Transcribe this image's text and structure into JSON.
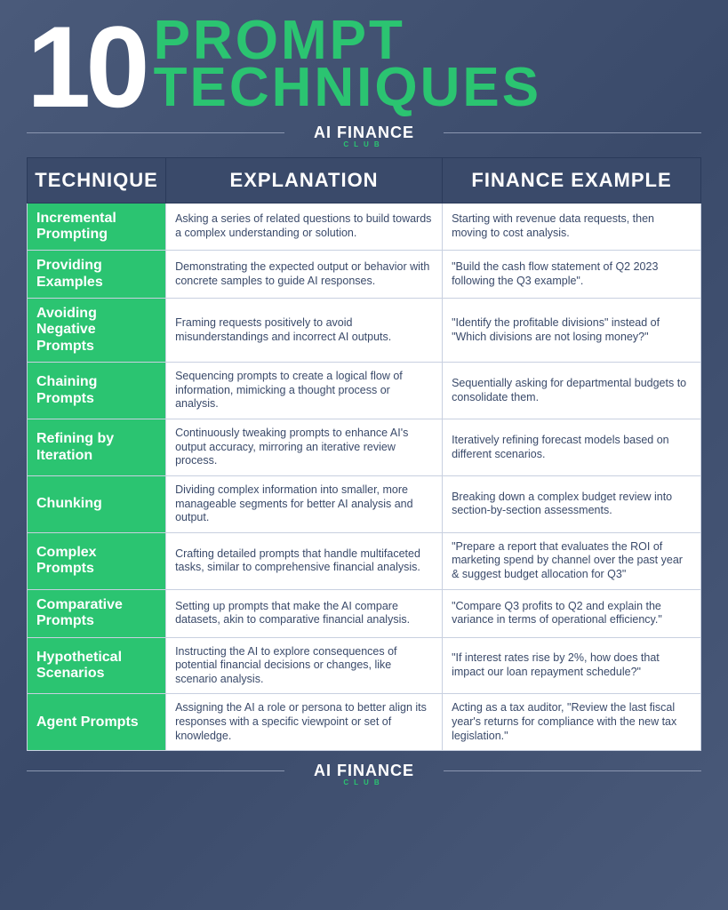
{
  "header": {
    "number": "10",
    "title_line1": "PROMPT",
    "title_line2": "TECHNIQUES"
  },
  "brand": {
    "name": "AI FINANCE",
    "sub": "CLUB"
  },
  "table": {
    "columns": [
      "TECHNIQUE",
      "EXPLANATION",
      "FINANCE EXAMPLE"
    ],
    "rows": [
      {
        "technique": "Incremental Prompting",
        "explanation": "Asking a series of related questions to build towards a complex understanding or solution.",
        "example": "Starting with revenue data requests, then moving to cost analysis."
      },
      {
        "technique": "Providing Examples",
        "explanation": "Demonstrating the expected output or behavior with concrete samples to guide AI responses.",
        "example": "\"Build the cash flow statement of Q2 2023 following the Q3 example\"."
      },
      {
        "technique": "Avoiding Negative Prompts",
        "explanation": "Framing requests positively to avoid misunderstandings and incorrect AI outputs.",
        "example": "\"Identify the profitable divisions\" instead of \"Which divisions are not losing money?\""
      },
      {
        "technique": "Chaining Prompts",
        "explanation": "Sequencing prompts to create a logical flow of information, mimicking a thought process or analysis.",
        "example": "Sequentially asking for departmental budgets to consolidate them."
      },
      {
        "technique": "Refining by Iteration",
        "explanation": "Continuously tweaking prompts to enhance AI's output accuracy, mirroring an iterative review process.",
        "example": "Iteratively refining forecast models based on different scenarios."
      },
      {
        "technique": "Chunking",
        "explanation": "Dividing complex information into smaller, more manageable segments for better AI analysis and output.",
        "example": "Breaking down a complex budget review into section-by-section assessments."
      },
      {
        "technique": "Complex Prompts",
        "explanation": "Crafting detailed prompts that handle multifaceted tasks, similar to comprehensive financial analysis.",
        "example": "\"Prepare a report that evaluates the ROI of marketing spend by channel over the past year & suggest budget allocation for Q3\""
      },
      {
        "technique": "Comparative Prompts",
        "explanation": "Setting up prompts that make the AI compare datasets, akin to comparative financial analysis.",
        "example": "\"Compare Q3 profits to Q2 and explain the variance in terms of operational efficiency.\""
      },
      {
        "technique": "Hypothetical Scenarios",
        "explanation": "Instructing the AI to explore consequences of potential financial decisions or changes, like scenario analysis.",
        "example": "\"If interest rates rise by 2%, how does that impact our loan repayment schedule?\""
      },
      {
        "technique": "Agent Prompts",
        "explanation": "Assigning the AI a role or persona to better align its responses with a specific viewpoint or set of knowledge.",
        "example": "Acting as a tax auditor, \"Review the last fiscal year's returns for compliance with the new tax legislation.\""
      }
    ]
  },
  "colors": {
    "bg_start": "#4a5a7a",
    "bg_end": "#3a4a6a",
    "accent": "#2bc471",
    "white": "#ffffff",
    "header_bg": "#3a4a6a",
    "text": "#3a4a6a",
    "border": "#c8d0e0"
  }
}
